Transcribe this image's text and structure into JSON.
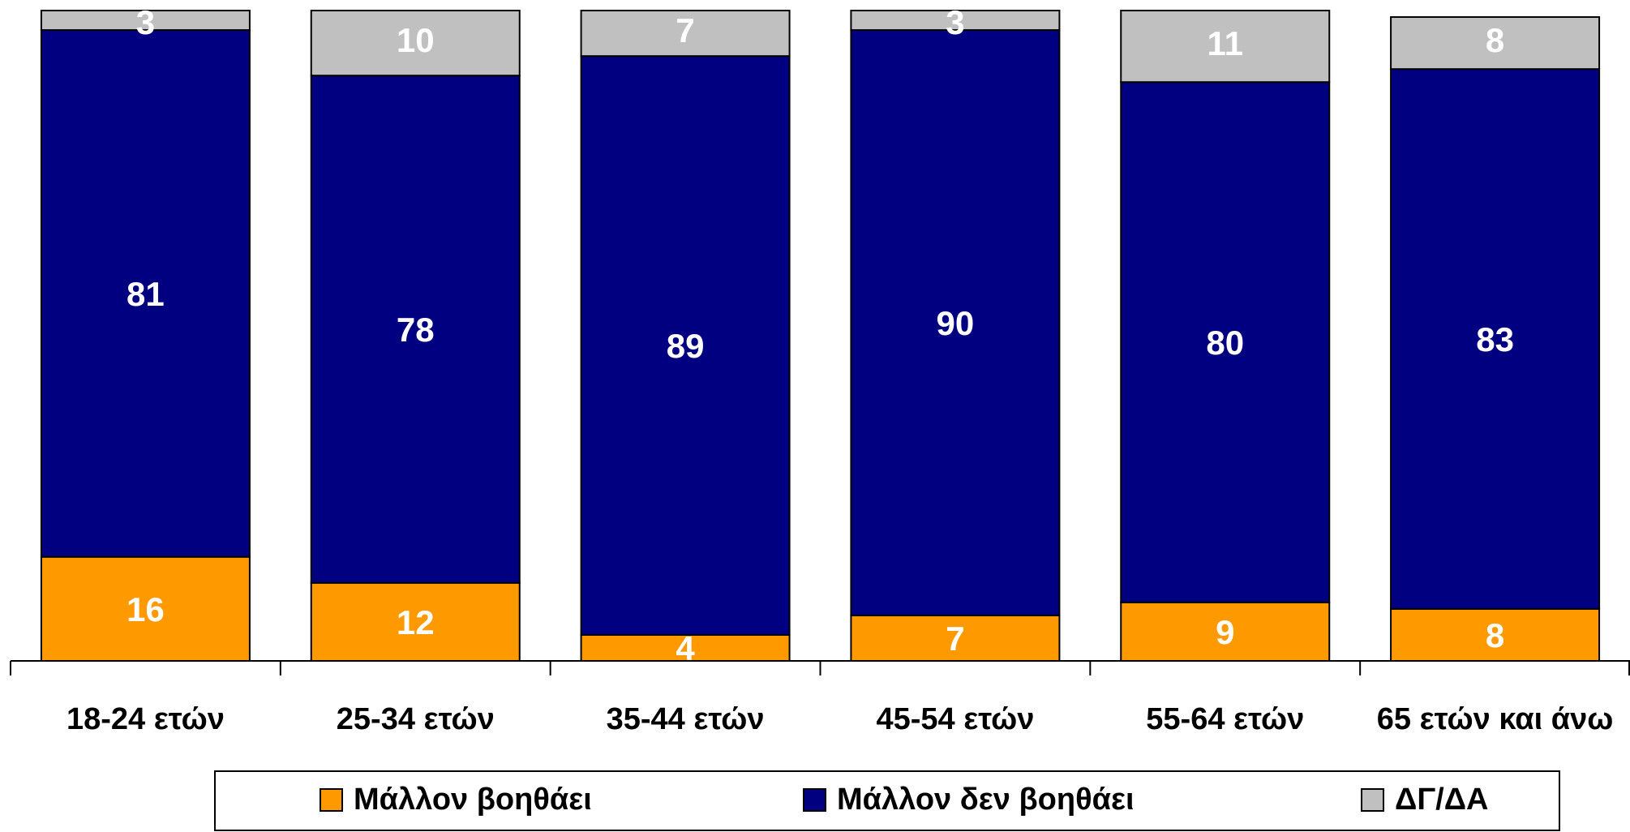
{
  "chart_data": {
    "type": "stacked-bar",
    "categories": [
      "18-24 ετών",
      "25-34 ετών",
      "35-44 ετών",
      "45-54 ετών",
      "55-64 ετών",
      "65 ετών και άνω"
    ],
    "series": [
      {
        "name": "Μάλλον βοηθάει",
        "color": "#FF9900",
        "values": [
          16,
          12,
          4,
          7,
          9,
          8
        ]
      },
      {
        "name": "Μάλλον δεν βοηθάει",
        "color": "#000080",
        "values": [
          81,
          78,
          89,
          90,
          80,
          83
        ]
      },
      {
        "name": "ΔΓ/ΔΑ",
        "color": "#C0C0C0",
        "values": [
          3,
          10,
          7,
          3,
          11,
          8
        ]
      }
    ],
    "ylim": [
      0,
      100
    ]
  }
}
